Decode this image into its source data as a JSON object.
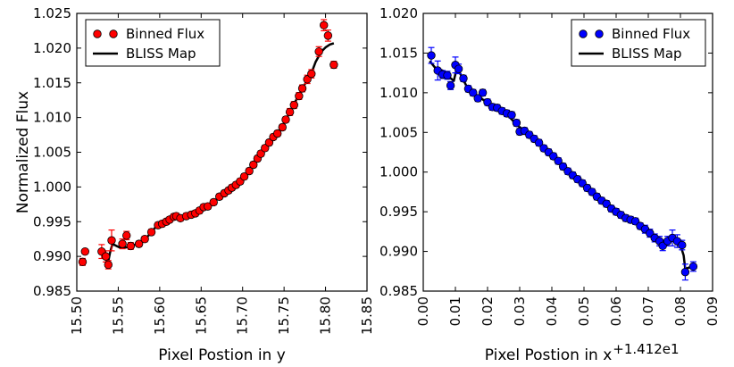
{
  "chart_data": [
    {
      "type": "scatter",
      "xlabel": "Pixel Postion in y",
      "ylabel": "Normalized Flux",
      "xlim": [
        15.5,
        15.85
      ],
      "ylim": [
        0.985,
        1.025
      ],
      "xticks": [
        "15.50",
        "15.55",
        "15.60",
        "15.65",
        "15.70",
        "15.75",
        "15.80",
        "15.85"
      ],
      "yticks": [
        "0.985",
        "0.990",
        "0.995",
        "1.000",
        "1.005",
        "1.010",
        "1.015",
        "1.020",
        "1.025"
      ],
      "legend": [
        "Binned Flux",
        "BLISS Map"
      ],
      "legend_position": "top-left",
      "color": "#ff0000",
      "series": [
        {
          "name": "Binned Flux",
          "points": [
            [
              15.507,
              0.9892,
              0.0005
            ],
            [
              15.51,
              0.9907,
              0.0003
            ],
            [
              15.53,
              0.9907,
              0.001
            ],
            [
              15.535,
              0.99,
              0.0008
            ],
            [
              15.538,
              0.9888,
              0.0006
            ],
            [
              15.542,
              0.9923,
              0.0015
            ],
            [
              15.555,
              0.9918,
              0.0007
            ],
            [
              15.56,
              0.993,
              0.0006
            ],
            [
              15.565,
              0.9915,
              0.0005
            ],
            [
              15.575,
              0.9918,
              0.0004
            ],
            [
              15.582,
              0.9925,
              0.0004
            ],
            [
              15.59,
              0.9935,
              0.0004
            ],
            [
              15.598,
              0.9945,
              0.0004
            ],
            [
              15.603,
              0.9947,
              0.0004
            ],
            [
              15.608,
              0.995,
              0.0004
            ],
            [
              15.612,
              0.9953,
              0.0004
            ],
            [
              15.617,
              0.9957,
              0.0004
            ],
            [
              15.62,
              0.9958,
              0.0004
            ],
            [
              15.625,
              0.9955,
              0.0004
            ],
            [
              15.632,
              0.9958,
              0.0004
            ],
            [
              15.638,
              0.996,
              0.0004
            ],
            [
              15.643,
              0.9962,
              0.0004
            ],
            [
              15.648,
              0.9966,
              0.0004
            ],
            [
              15.653,
              0.9971,
              0.0004
            ],
            [
              15.658,
              0.9972,
              0.0004
            ],
            [
              15.665,
              0.9978,
              0.0004
            ],
            [
              15.672,
              0.9986,
              0.0004
            ],
            [
              15.678,
              0.9991,
              0.0004
            ],
            [
              15.683,
              0.9995,
              0.0004
            ],
            [
              15.687,
              0.9999,
              0.0004
            ],
            [
              15.692,
              1.0003,
              0.0004
            ],
            [
              15.697,
              1.0008,
              0.0004
            ],
            [
              15.702,
              1.0015,
              0.0004
            ],
            [
              15.708,
              1.0023,
              0.0004
            ],
            [
              15.713,
              1.0032,
              0.0004
            ],
            [
              15.718,
              1.0041,
              0.0004
            ],
            [
              15.722,
              1.0048,
              0.0004
            ],
            [
              15.727,
              1.0056,
              0.0004
            ],
            [
              15.732,
              1.0064,
              0.0004
            ],
            [
              15.737,
              1.0072,
              0.0004
            ],
            [
              15.742,
              1.0077,
              0.0004
            ],
            [
              15.748,
              1.0086,
              0.0004
            ],
            [
              15.752,
              1.0097,
              0.0004
            ],
            [
              15.757,
              1.0108,
              0.0005
            ],
            [
              15.762,
              1.0118,
              0.0005
            ],
            [
              15.768,
              1.0131,
              0.0005
            ],
            [
              15.772,
              1.0142,
              0.0005
            ],
            [
              15.778,
              1.0155,
              0.0006
            ],
            [
              15.783,
              1.0163,
              0.0006
            ],
            [
              15.792,
              1.0195,
              0.0007
            ],
            [
              15.798,
              1.0233,
              0.0008
            ],
            [
              15.803,
              1.0218,
              0.0008
            ],
            [
              15.81,
              1.0176,
              0.0005
            ]
          ]
        },
        {
          "name": "BLISS Map",
          "points": [
            [
              15.528,
              0.9905
            ],
            [
              15.532,
              0.99
            ],
            [
              15.535,
              0.9895
            ],
            [
              15.538,
              0.9893
            ],
            [
              15.54,
              0.9905
            ],
            [
              15.543,
              0.9918
            ],
            [
              15.548,
              0.9915
            ],
            [
              15.553,
              0.9912
            ],
            [
              15.56,
              0.9913
            ],
            [
              15.568,
              0.9916
            ],
            [
              15.575,
              0.9919
            ],
            [
              15.585,
              0.9928
            ],
            [
              15.595,
              0.9942
            ],
            [
              15.605,
              0.9948
            ],
            [
              15.615,
              0.9954
            ],
            [
              15.625,
              0.9955
            ],
            [
              15.635,
              0.9958
            ],
            [
              15.645,
              0.9962
            ],
            [
              15.655,
              0.997
            ],
            [
              15.665,
              0.9978
            ],
            [
              15.675,
              0.9988
            ],
            [
              15.685,
              0.9996
            ],
            [
              15.695,
              1.0006
            ],
            [
              15.705,
              1.0018
            ],
            [
              15.715,
              1.0036
            ],
            [
              15.725,
              1.0052
            ],
            [
              15.735,
              1.0068
            ],
            [
              15.745,
              1.0081
            ],
            [
              15.752,
              1.0096
            ],
            [
              15.76,
              1.0115
            ],
            [
              15.768,
              1.0133
            ],
            [
              15.775,
              1.0148
            ],
            [
              15.782,
              1.0161
            ],
            [
              15.788,
              1.018
            ],
            [
              15.795,
              1.0195
            ],
            [
              15.8,
              1.0201
            ],
            [
              15.805,
              1.0205
            ],
            [
              15.81,
              1.0207
            ]
          ]
        }
      ]
    },
    {
      "type": "scatter",
      "xlabel": "Pixel Postion in x",
      "axis_offset_label": "+1.412e1",
      "ylabel": "",
      "xlim": [
        0.0,
        0.09
      ],
      "ylim": [
        0.985,
        1.02
      ],
      "xticks": [
        "0.00",
        "0.01",
        "0.02",
        "0.03",
        "0.04",
        "0.05",
        "0.06",
        "0.07",
        "0.08",
        "0.09"
      ],
      "yticks": [
        "0.985",
        "0.990",
        "0.995",
        "1.000",
        "1.005",
        "1.010",
        "1.015",
        "1.020"
      ],
      "legend": [
        "Binned Flux",
        "BLISS Map"
      ],
      "legend_position": "top-right",
      "color": "#0000ff",
      "series": [
        {
          "name": "Binned Flux",
          "points": [
            [
              0.0025,
              1.0147,
              0.001
            ],
            [
              0.0045,
              1.0128,
              0.0012
            ],
            [
              0.006,
              1.0123,
              0.0005
            ],
            [
              0.0075,
              1.0122,
              0.0005
            ],
            [
              0.0085,
              1.0109,
              0.0005
            ],
            [
              0.01,
              1.0135,
              0.001
            ],
            [
              0.011,
              1.013,
              0.0006
            ],
            [
              0.0125,
              1.0118,
              0.0004
            ],
            [
              0.014,
              1.0105,
              0.0004
            ],
            [
              0.0155,
              1.01,
              0.0004
            ],
            [
              0.017,
              1.0093,
              0.0004
            ],
            [
              0.0185,
              1.01,
              0.0004
            ],
            [
              0.02,
              1.0088,
              0.0004
            ],
            [
              0.0215,
              1.0082,
              0.0004
            ],
            [
              0.023,
              1.0081,
              0.0004
            ],
            [
              0.0245,
              1.0077,
              0.0004
            ],
            [
              0.026,
              1.0074,
              0.0004
            ],
            [
              0.0275,
              1.0072,
              0.0004
            ],
            [
              0.029,
              1.0062,
              0.0004
            ],
            [
              0.03,
              1.0051,
              0.0004
            ],
            [
              0.0315,
              1.0052,
              0.0004
            ],
            [
              0.033,
              1.0047,
              0.0004
            ],
            [
              0.0345,
              1.0042,
              0.0004
            ],
            [
              0.036,
              1.0037,
              0.0004
            ],
            [
              0.0375,
              1.003,
              0.0004
            ],
            [
              0.039,
              1.0025,
              0.0004
            ],
            [
              0.0405,
              1.002,
              0.0004
            ],
            [
              0.042,
              1.0014,
              0.0004
            ],
            [
              0.0435,
              1.0007,
              0.0004
            ],
            [
              0.045,
              1.0001,
              0.0004
            ],
            [
              0.0465,
              0.9996,
              0.0004
            ],
            [
              0.048,
              0.9991,
              0.0004
            ],
            [
              0.0495,
              0.9986,
              0.0004
            ],
            [
              0.051,
              0.998,
              0.0004
            ],
            [
              0.0525,
              0.9975,
              0.0004
            ],
            [
              0.054,
              0.9969,
              0.0004
            ],
            [
              0.0555,
              0.9964,
              0.0004
            ],
            [
              0.057,
              0.996,
              0.0004
            ],
            [
              0.0585,
              0.9954,
              0.0004
            ],
            [
              0.06,
              0.995,
              0.0004
            ],
            [
              0.0615,
              0.9946,
              0.0004
            ],
            [
              0.063,
              0.9942,
              0.0004
            ],
            [
              0.0645,
              0.994,
              0.0004
            ],
            [
              0.066,
              0.9938,
              0.0004
            ],
            [
              0.0675,
              0.9932,
              0.0004
            ],
            [
              0.069,
              0.9928,
              0.0005
            ],
            [
              0.0705,
              0.9923,
              0.0005
            ],
            [
              0.072,
              0.9917,
              0.0005
            ],
            [
              0.0735,
              0.9913,
              0.0006
            ],
            [
              0.0745,
              0.9907,
              0.0006
            ],
            [
              0.076,
              0.9913,
              0.0006
            ],
            [
              0.0775,
              0.9917,
              0.001
            ],
            [
              0.079,
              0.9913,
              0.0008
            ],
            [
              0.0805,
              0.9908,
              0.0006
            ],
            [
              0.0815,
              0.9874,
              0.001
            ],
            [
              0.084,
              0.9881,
              0.0006
            ]
          ]
        },
        {
          "name": "BLISS Map",
          "points": [
            [
              0.002,
              1.014
            ],
            [
              0.004,
              1.013
            ],
            [
              0.006,
              1.0128
            ],
            [
              0.008,
              1.012
            ],
            [
              0.0095,
              1.0115
            ],
            [
              0.0105,
              1.0132
            ],
            [
              0.012,
              1.012
            ],
            [
              0.014,
              1.0104
            ],
            [
              0.017,
              1.0096
            ],
            [
              0.02,
              1.0087
            ],
            [
              0.023,
              1.008
            ],
            [
              0.026,
              1.0073
            ],
            [
              0.029,
              1.006
            ],
            [
              0.032,
              1.005
            ],
            [
              0.035,
              1.0041
            ],
            [
              0.038,
              1.0028
            ],
            [
              0.041,
              1.0017
            ],
            [
              0.044,
              1.0004
            ],
            [
              0.047,
              0.9994
            ],
            [
              0.05,
              0.9984
            ],
            [
              0.053,
              0.9973
            ],
            [
              0.056,
              0.9963
            ],
            [
              0.059,
              0.9953
            ],
            [
              0.062,
              0.9944
            ],
            [
              0.065,
              0.9939
            ],
            [
              0.068,
              0.9931
            ],
            [
              0.071,
              0.9921
            ],
            [
              0.074,
              0.9911
            ],
            [
              0.076,
              0.9914
            ],
            [
              0.078,
              0.9915
            ],
            [
              0.08,
              0.9908
            ],
            [
              0.081,
              0.9895
            ],
            [
              0.0815,
              0.9878
            ],
            [
              0.083,
              0.988
            ]
          ]
        }
      ]
    }
  ]
}
